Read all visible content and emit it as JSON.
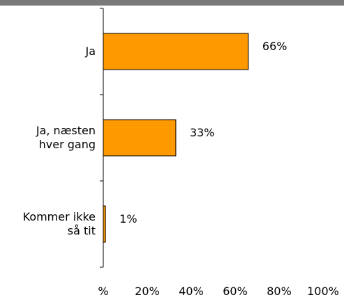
{
  "chart_data": {
    "type": "bar",
    "orientation": "horizontal",
    "categories": [
      [
        "Ja"
      ],
      [
        "Ja, næsten",
        "hver gang"
      ],
      [
        "Kommer ikke",
        "så tit"
      ]
    ],
    "values": [
      66,
      33,
      1
    ],
    "value_labels": [
      "66%",
      "33%",
      "1%"
    ],
    "xlim": [
      0,
      100
    ],
    "x_ticks": [
      "%",
      "20%",
      "40%",
      "60%",
      "80%",
      "100%"
    ],
    "grid": false,
    "legend": "none",
    "bar_color": "#ff9900",
    "bar_edge_color": "#000000"
  }
}
